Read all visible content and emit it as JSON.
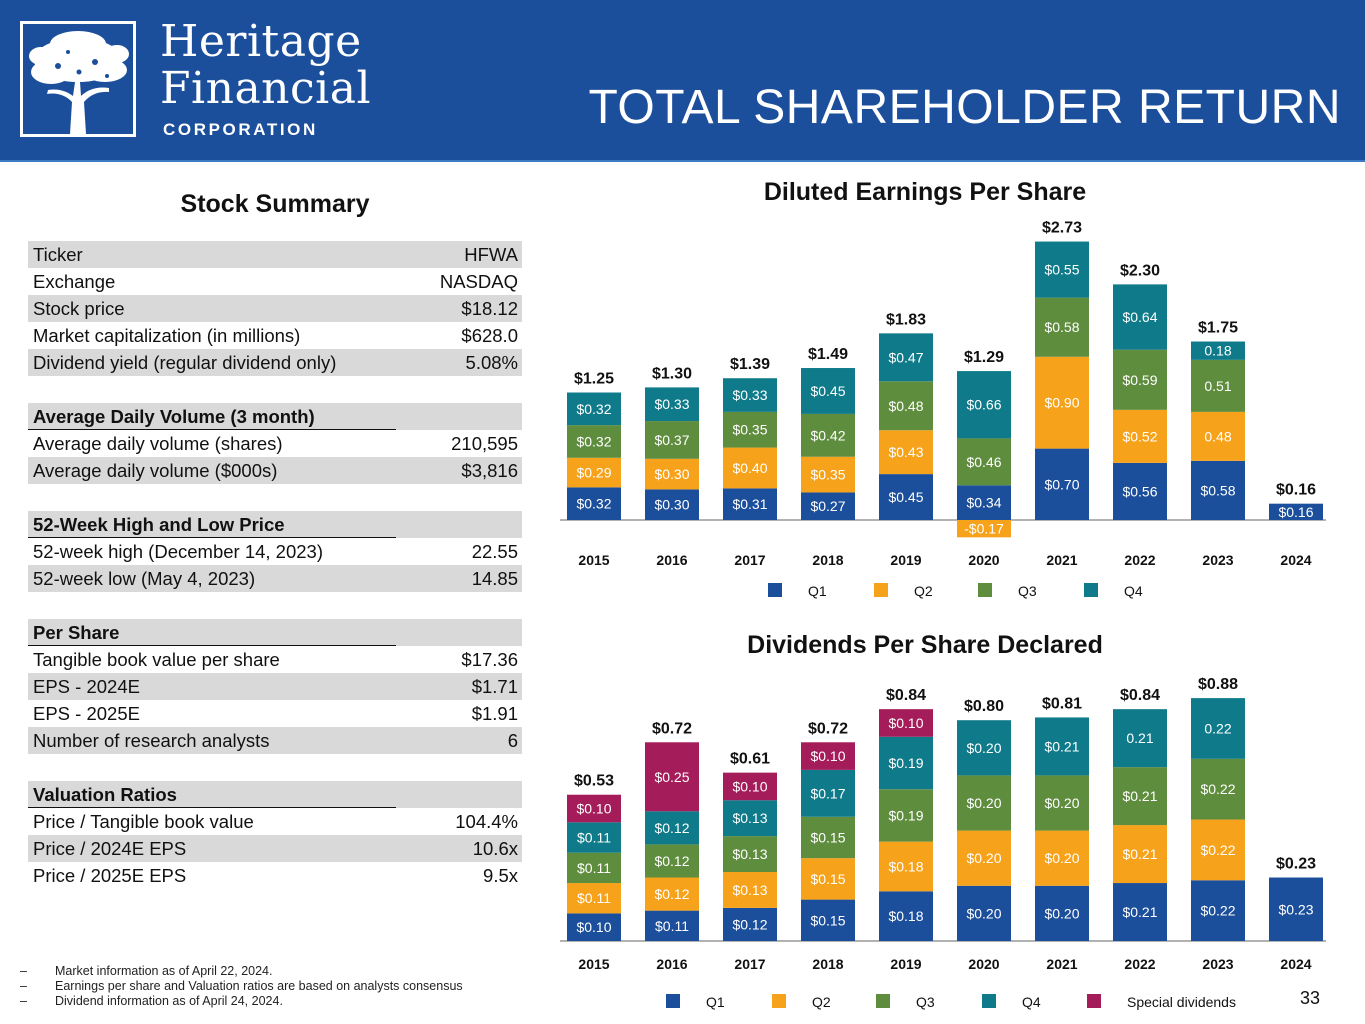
{
  "header": {
    "logo_line1": "Heritage",
    "logo_line2": "Financial",
    "logo_line3": "CORPORATION",
    "title": "TOTAL SHAREHOLDER RETURN",
    "background_color": "#1b4e9b"
  },
  "summary": {
    "title": "Stock Summary",
    "rows": [
      {
        "label": "Ticker",
        "value": "HFWA",
        "style": "shade"
      },
      {
        "label": "Exchange",
        "value": "NASDAQ",
        "style": "plain"
      },
      {
        "label": "Stock price",
        "value": "$18.12",
        "style": "shade"
      },
      {
        "label": "Market capitalization (in millions)",
        "value": "$628.0",
        "style": "plain"
      },
      {
        "label": "Dividend yield (regular dividend only)",
        "value": "5.08%",
        "style": "shade"
      },
      {
        "label": "",
        "value": "",
        "style": "blank"
      },
      {
        "label": "Average Daily Volume (3 month)",
        "value": "",
        "style": "head"
      },
      {
        "label": "Average daily volume (shares)",
        "value": "210,595",
        "style": "plain"
      },
      {
        "label": "Average daily volume ($000s)",
        "value": "$3,816",
        "style": "shade"
      },
      {
        "label": "",
        "value": "",
        "style": "blank"
      },
      {
        "label": "52-Week High and Low Price",
        "value": "",
        "style": "head"
      },
      {
        "label": "52-week high (December 14, 2023)",
        "value": "22.55",
        "style": "plain"
      },
      {
        "label": "52-week low (May 4, 2023)",
        "value": "14.85",
        "style": "shade"
      },
      {
        "label": "",
        "value": "",
        "style": "blank"
      },
      {
        "label": "Per Share",
        "value": "",
        "style": "head"
      },
      {
        "label": "Tangible book value per share",
        "value": "$17.36",
        "style": "plain"
      },
      {
        "label": "EPS - 2024E",
        "value": "$1.71",
        "style": "shade"
      },
      {
        "label": "EPS - 2025E",
        "value": "$1.91",
        "style": "plain"
      },
      {
        "label": "Number of research analysts",
        "value": "6",
        "style": "shade"
      },
      {
        "label": "",
        "value": "",
        "style": "blank"
      },
      {
        "label": "Valuation Ratios",
        "value": "",
        "style": "head"
      },
      {
        "label": "Price / Tangible book value",
        "value": "104.4%",
        "style": "plain"
      },
      {
        "label": "Price / 2024E EPS",
        "value": "10.6x",
        "style": "shade"
      },
      {
        "label": "Price / 2025E EPS",
        "value": "9.5x",
        "style": "plain"
      }
    ]
  },
  "footnotes": {
    "dash": "–",
    "items": [
      "Market information as of April 22, 2024.",
      "Earnings per share and Valuation ratios are based on analysts consensus",
      "Dividend information as of April 24, 2024."
    ]
  },
  "page_number": "33",
  "chart_data": [
    {
      "type": "bar",
      "stacked": true,
      "title": "Diluted Earnings Per Share",
      "categories": [
        "2015",
        "2016",
        "2017",
        "2018",
        "2019",
        "2020",
        "2021",
        "2022",
        "2023",
        "2024"
      ],
      "series": [
        {
          "name": "Q1",
          "color": "#1b4e9b",
          "values": [
            0.32,
            0.3,
            0.31,
            0.27,
            0.45,
            0.34,
            0.7,
            0.56,
            0.58,
            0.16
          ],
          "labels": [
            "$0.32",
            "$0.30",
            "$0.31",
            "$0.27",
            "$0.45",
            "$0.34",
            "$0.70",
            "$0.56",
            "$0.58",
            "$0.16"
          ]
        },
        {
          "name": "Q2",
          "color": "#f7a21b",
          "values": [
            0.29,
            0.3,
            0.4,
            0.35,
            0.43,
            -0.17,
            0.9,
            0.52,
            0.48,
            null
          ],
          "labels": [
            "$0.29",
            "$0.30",
            "$0.40",
            "$0.35",
            "$0.43",
            "-$0.17",
            "$0.90",
            "$0.52",
            "0.48",
            null
          ]
        },
        {
          "name": "Q3",
          "color": "#5f8d3e",
          "values": [
            0.32,
            0.37,
            0.35,
            0.42,
            0.48,
            0.46,
            0.58,
            0.59,
            0.51,
            null
          ],
          "labels": [
            "$0.32",
            "$0.37",
            "$0.35",
            "$0.42",
            "$0.48",
            "$0.46",
            "$0.58",
            "$0.59",
            "0.51",
            null
          ]
        },
        {
          "name": "Q4",
          "color": "#0f7b8a",
          "values": [
            0.32,
            0.33,
            0.33,
            0.45,
            0.47,
            0.66,
            0.55,
            0.64,
            0.18,
            null
          ],
          "labels": [
            "$0.32",
            "$0.33",
            "$0.33",
            "$0.45",
            "$0.47",
            "$0.66",
            "$0.55",
            "$0.64",
            "0.18",
            null
          ]
        }
      ],
      "totals": [
        "$1.25",
        "$1.30",
        "$1.39",
        "$1.49",
        "$1.83",
        "$1.29",
        "$2.73",
        "$2.30",
        "$1.75",
        "$0.16"
      ],
      "legend_position": "bottom",
      "grid": false
    },
    {
      "type": "bar",
      "stacked": true,
      "title": "Dividends Per Share Declared",
      "categories": [
        "2015",
        "2016",
        "2017",
        "2018",
        "2019",
        "2020",
        "2021",
        "2022",
        "2023",
        "2024"
      ],
      "series": [
        {
          "name": "Q1",
          "color": "#1b4e9b",
          "values": [
            0.1,
            0.11,
            0.12,
            0.15,
            0.18,
            0.2,
            0.2,
            0.21,
            0.22,
            0.23
          ],
          "labels": [
            "$0.10",
            "$0.11",
            "$0.12",
            "$0.15",
            "$0.18",
            "$0.20",
            "$0.20",
            "$0.21",
            "$0.22",
            "$0.23"
          ]
        },
        {
          "name": "Q2",
          "color": "#f7a21b",
          "values": [
            0.11,
            0.12,
            0.13,
            0.15,
            0.18,
            0.2,
            0.2,
            0.21,
            0.22,
            null
          ],
          "labels": [
            "$0.11",
            "$0.12",
            "$0.13",
            "$0.15",
            "$0.18",
            "$0.20",
            "$0.20",
            "$0.21",
            "$0.22",
            null
          ]
        },
        {
          "name": "Q3",
          "color": "#5f8d3e",
          "values": [
            0.11,
            0.12,
            0.13,
            0.15,
            0.19,
            0.2,
            0.2,
            0.21,
            0.22,
            null
          ],
          "labels": [
            "$0.11",
            "$0.12",
            "$0.13",
            "$0.15",
            "$0.19",
            "$0.20",
            "$0.20",
            "$0.21",
            "$0.22",
            null
          ]
        },
        {
          "name": "Q4",
          "color": "#0f7b8a",
          "values": [
            0.11,
            0.12,
            0.13,
            0.17,
            0.19,
            0.2,
            0.21,
            0.21,
            0.22,
            null
          ],
          "labels": [
            "$0.11",
            "$0.12",
            "$0.13",
            "$0.17",
            "$0.19",
            "$0.20",
            "$0.21",
            "0.21",
            "0.22",
            null
          ]
        },
        {
          "name": "Special dividends",
          "color": "#a51c5a",
          "values": [
            0.1,
            0.25,
            0.1,
            0.1,
            0.1,
            null,
            null,
            null,
            null,
            null
          ],
          "labels": [
            "$0.10",
            "$0.25",
            "$0.10",
            "$0.10",
            "$0.10",
            null,
            null,
            null,
            null,
            null
          ]
        }
      ],
      "totals": [
        "$0.53",
        "$0.72",
        "$0.61",
        "$0.72",
        "$0.84",
        "$0.80",
        "$0.81",
        "$0.84",
        "$0.88",
        "$0.23"
      ],
      "legend_position": "bottom",
      "grid": false
    }
  ]
}
